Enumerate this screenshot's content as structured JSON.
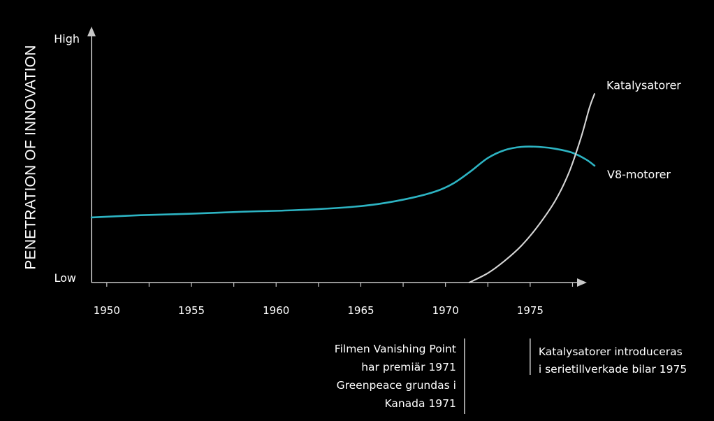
{
  "chart_data": {
    "type": "line",
    "ylabel": "PENETRATION OF INNOVATION",
    "xlabel": "",
    "y_level_labels": {
      "high": "High",
      "low": "Low"
    },
    "x_ticks": [
      1950,
      1955,
      1960,
      1965,
      1970,
      1975
    ],
    "xlim": [
      1949.1,
      1978.8
    ],
    "ylim": [
      0,
      1
    ],
    "grid": false,
    "series": [
      {
        "name": "V8-motorer",
        "color": "#2db4c3",
        "points": [
          [
            1949.1,
            0.263
          ],
          [
            1952,
            0.272
          ],
          [
            1955,
            0.278
          ],
          [
            1958,
            0.286
          ],
          [
            1961,
            0.292
          ],
          [
            1964,
            0.303
          ],
          [
            1966,
            0.317
          ],
          [
            1968,
            0.342
          ],
          [
            1969.5,
            0.37
          ],
          [
            1970.5,
            0.402
          ],
          [
            1971.5,
            0.45
          ],
          [
            1972.5,
            0.503
          ],
          [
            1973.5,
            0.535
          ],
          [
            1974.5,
            0.548
          ],
          [
            1975.5,
            0.548
          ],
          [
            1976.5,
            0.54
          ],
          [
            1977.5,
            0.524
          ],
          [
            1978.3,
            0.497
          ],
          [
            1978.8,
            0.472
          ]
        ]
      },
      {
        "name": "Katalysatorer",
        "color": "#d6d6d6",
        "points": [
          [
            1971.4,
            0.0
          ],
          [
            1972.5,
            0.038
          ],
          [
            1973.5,
            0.088
          ],
          [
            1974.5,
            0.15
          ],
          [
            1975.5,
            0.232
          ],
          [
            1976.5,
            0.333
          ],
          [
            1977.3,
            0.446
          ],
          [
            1978,
            0.585
          ],
          [
            1978.5,
            0.706
          ],
          [
            1978.8,
            0.762
          ]
        ]
      }
    ],
    "annotations": [
      {
        "x": 1971,
        "lines": [
          "Filmen Vanishing Point",
          "har premiär 1971",
          "Greenpeace grundas i",
          "Kanada 1971"
        ]
      },
      {
        "x": 1975,
        "lines": [
          "Katalysatorer introduceras",
          "i serietillverkade bilar 1975"
        ]
      }
    ]
  }
}
